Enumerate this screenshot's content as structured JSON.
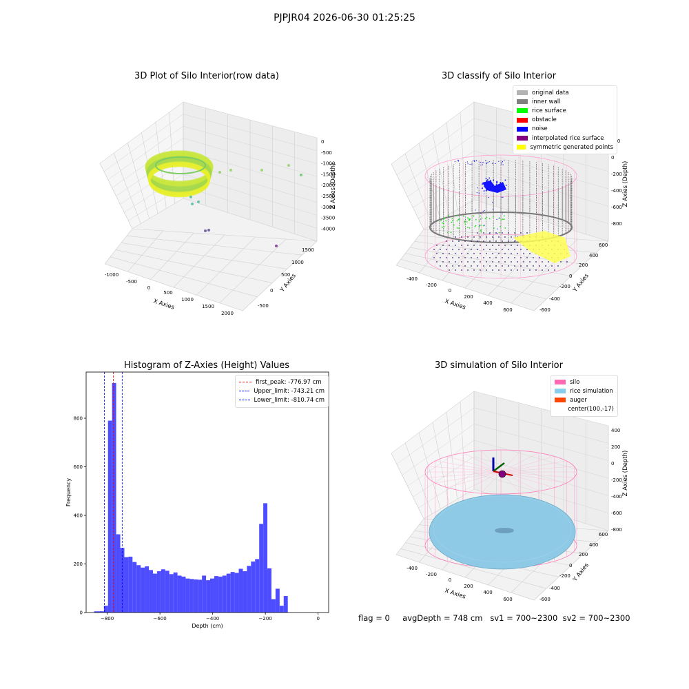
{
  "suptitle": "PJPJR04 2026-06-30 01:25:25",
  "panel1": {
    "title": "3D Plot of Silo Interior(row data)",
    "xlabel": "X Axies",
    "ylabel": "Y Axies",
    "zlabel": "Z Axies (Depth)",
    "xticks": [
      "-1000",
      "-500",
      "0",
      "500",
      "1000",
      "1500",
      "2000"
    ],
    "yticks": [
      "-500",
      "0",
      "500",
      "1000",
      "1500"
    ],
    "zticks": [
      "0",
      "-500",
      "-1000",
      "-1500",
      "-2000",
      "-2500",
      "-3000",
      "-3500",
      "-4000"
    ]
  },
  "panel2": {
    "title": "3D classify of Silo Interior",
    "xlabel": "X Axies",
    "ylabel": "Y Axies",
    "zlabel": "Z Axies (Depth)",
    "xticks": [
      "-400",
      "-200",
      "0",
      "200",
      "400",
      "600"
    ],
    "yticks": [
      "-600",
      "-400",
      "-200",
      "0",
      "200",
      "400",
      "600"
    ],
    "zticks": [
      "200",
      "0",
      "-200",
      "-400",
      "-600",
      "-800"
    ],
    "legend": [
      {
        "label": "original data",
        "color": "#b3b3b3"
      },
      {
        "label": "inner wall",
        "color": "#808080"
      },
      {
        "label": "rice surface",
        "color": "#00ff00"
      },
      {
        "label": "obstacle",
        "color": "#ff0000"
      },
      {
        "label": "noise",
        "color": "#0000ff"
      },
      {
        "label": "interpolated rice surface",
        "color": "#800080"
      },
      {
        "label": "symmetric generated points",
        "color": "#ffff00"
      }
    ]
  },
  "panel4": {
    "title": "3D simulation of Silo Interior",
    "xlabel": "X Axies",
    "ylabel": "Y Axies",
    "zlabel": "Z Axies (Depth)",
    "xticks": [
      "-400",
      "-200",
      "0",
      "200",
      "400",
      "600"
    ],
    "yticks": [
      "-600",
      "-400",
      "-200",
      "0",
      "200",
      "400",
      "600"
    ],
    "zticks": [
      "400",
      "200",
      "0",
      "-200",
      "-400",
      "-600",
      "-800"
    ],
    "legend": [
      {
        "label": "silo",
        "color": "#ff69b4"
      },
      {
        "label": "rice simulation",
        "color": "#87ceeb"
      },
      {
        "label": "auger",
        "color": "#ff4500"
      },
      {
        "label": "center(100,-17)",
        "color": "#ffffff"
      }
    ]
  },
  "status": {
    "flag": "flag = 0",
    "avg": "avgDepth = 748 cm",
    "sv1": "sv1 = 700~2300",
    "sv2": "sv2 = 700~2300"
  },
  "chart_data": {
    "type": "bar",
    "title": "Histogram of Z-Axies (Height) Values",
    "xlabel": "Depth (cm)",
    "ylabel": "Frequency",
    "xlim": [
      -880,
      40
    ],
    "ylim": [
      0,
      990
    ],
    "xticks": [
      -800,
      -600,
      -400,
      -200,
      0
    ],
    "yticks": [
      0,
      200,
      400,
      600,
      800
    ],
    "bin_width": 15.5,
    "bins_start": [
      -828,
      -812.5,
      -797,
      -781.5,
      -766,
      -750.5,
      -735,
      -719.5,
      -704,
      -688.5,
      -673,
      -657.5,
      -642,
      -626.5,
      -611,
      -595.5,
      -580,
      -564.5,
      -549,
      -533.5,
      -518,
      -502.5,
      -487,
      -471.5,
      -456,
      -440.5,
      -425,
      -409.5,
      -394,
      -378.5,
      -363,
      -347.5,
      -332,
      -316.5,
      -301,
      -285.5,
      -270,
      -254.5,
      -239,
      -223.5,
      -208,
      -192.5,
      -177,
      -161.5,
      -146,
      -130.5,
      -115,
      -99.5,
      -84,
      -68.5,
      -53,
      -37.5,
      -22,
      -6.5
    ],
    "values": [
      5,
      28,
      790,
      945,
      322,
      266,
      228,
      230,
      208,
      195,
      185,
      190,
      175,
      160,
      170,
      178,
      172,
      158,
      165,
      152,
      148,
      140,
      138,
      136,
      135,
      152,
      133,
      140,
      150,
      148,
      152,
      160,
      167,
      163,
      180,
      170,
      192,
      210,
      220,
      365,
      450,
      182,
      55,
      98,
      28,
      68,
      0,
      0,
      0,
      0,
      0,
      0,
      0,
      0
    ],
    "pre_bins": [
      {
        "start": -850,
        "value": 5
      }
    ],
    "vlines": [
      {
        "label": "first_peak: -776.97 cm",
        "x": -776.97,
        "color": "#ff0000"
      },
      {
        "label": "Upper_limit: -743.21 cm",
        "x": -743.21,
        "color": "#0000ff"
      },
      {
        "label": "Lower_limit: -810.74 cm",
        "x": -810.74,
        "color": "#0000ff"
      }
    ],
    "bar_color": "#4d4dff",
    "legend_position": "top-right"
  }
}
